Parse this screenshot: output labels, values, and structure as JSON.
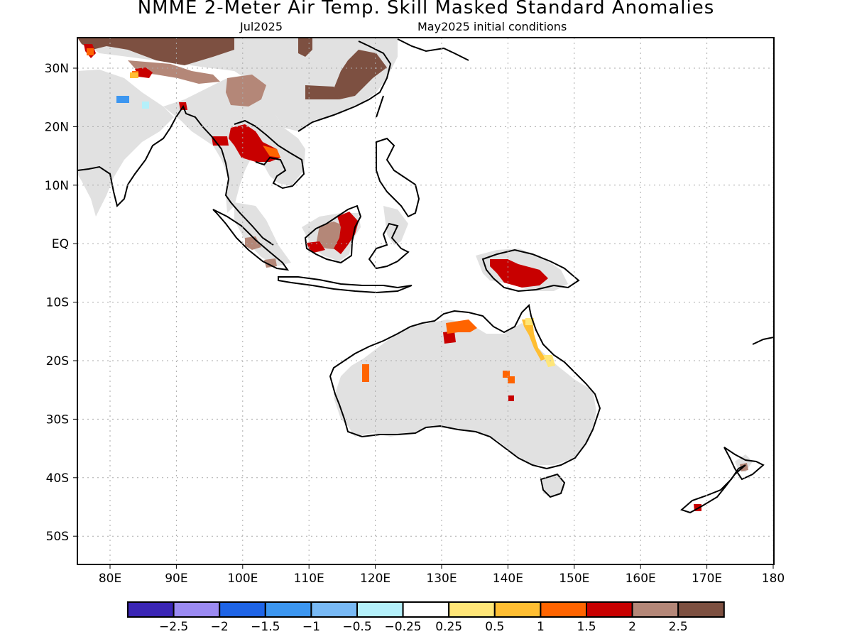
{
  "title": "NMME 2-Meter Air Temp. Skill Masked Standard Anomalies",
  "target_month": "Jul2025",
  "initial_conditions": "May2025 initial conditions",
  "lat_labels": [
    "30N",
    "20N",
    "10N",
    "EQ",
    "10S",
    "20S",
    "30S",
    "40S",
    "50S"
  ],
  "lon_labels": [
    "80E",
    "90E",
    "100E",
    "110E",
    "120E",
    "130E",
    "140E",
    "150E",
    "160E",
    "170E",
    "180"
  ],
  "colorbar": {
    "colors": [
      "#3a25b5",
      "#9b8af2",
      "#1e64e6",
      "#3c96f0",
      "#78b9f5",
      "#b4f0fa",
      "#ffffff",
      "#ffe678",
      "#ffbe32",
      "#ff6400",
      "#c80000",
      "#b48778",
      "#7d5041"
    ],
    "labels": [
      "−2.5",
      "−2",
      "−1.5",
      "−1",
      "−0.5",
      "−0.25",
      "0.25",
      "0.5",
      "1",
      "1.5",
      "2",
      "2.5"
    ]
  },
  "colors": {
    "land_mask": "#e1e1e1",
    "coast": "#000000",
    "grid": "#aaaaaa"
  }
}
